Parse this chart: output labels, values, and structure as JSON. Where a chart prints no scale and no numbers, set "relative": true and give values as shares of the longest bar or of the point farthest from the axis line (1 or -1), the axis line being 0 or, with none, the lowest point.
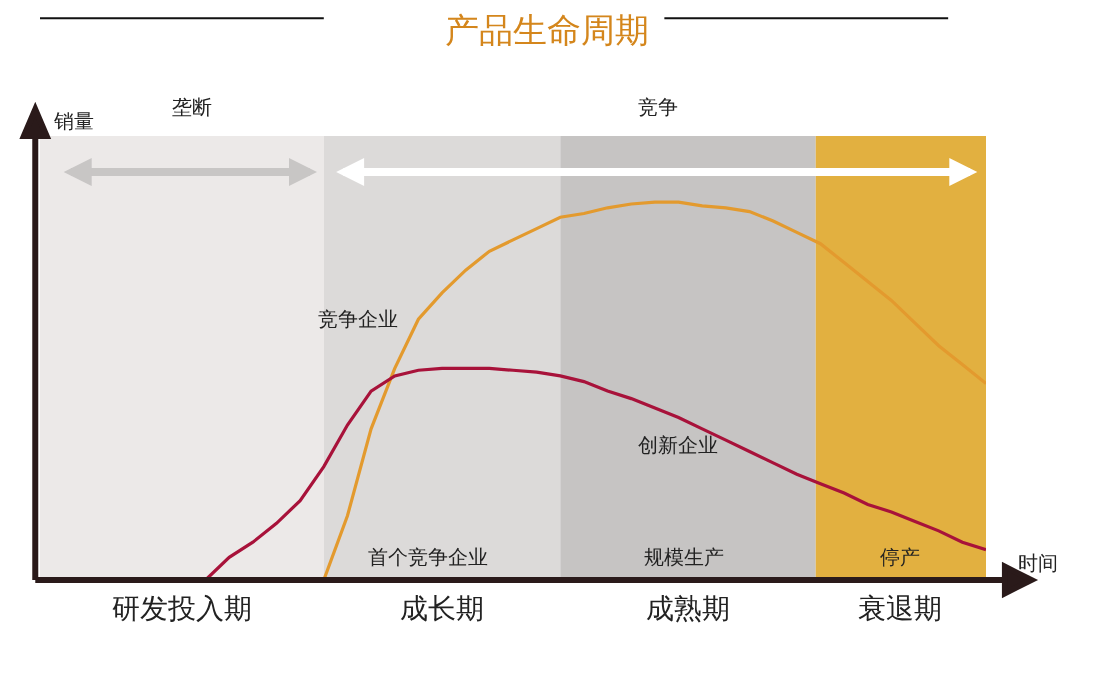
{
  "chart_data": {
    "type": "line",
    "title": "产品生命周期",
    "xlabel": "时间",
    "ylabel": "销量",
    "relative": true,
    "legend": false,
    "marker": "none",
    "line_style": "solid",
    "categories": [
      null,
      null,
      null,
      null,
      null,
      null,
      null,
      null,
      null,
      null,
      null,
      null,
      null,
      null,
      null,
      null,
      null,
      null,
      null,
      null,
      null,
      null,
      null,
      null,
      null,
      null,
      null,
      null,
      null,
      null,
      null,
      null,
      null,
      null,
      null,
      null,
      null,
      null,
      null,
      null,
      null
    ],
    "series": [
      {
        "name": "竞争企业",
        "color": "#e39a2e",
        "values": [
          null,
          null,
          null,
          null,
          null,
          null,
          null,
          null,
          null,
          null,
          null,
          null,
          0,
          0.17,
          0.4,
          0.56,
          0.69,
          0.76,
          0.82,
          0.87,
          0.9,
          0.93,
          0.96,
          0.97,
          0.985,
          0.995,
          1.0,
          1.0,
          0.99,
          0.985,
          0.975,
          0.95,
          0.92,
          0.89,
          0.84,
          0.79,
          0.74,
          0.68,
          0.62,
          0.57,
          0.52
        ]
      },
      {
        "name": "创新企业",
        "color": "#a8123a",
        "values": [
          null,
          null,
          null,
          null,
          null,
          null,
          null,
          0,
          0.06,
          0.1,
          0.15,
          0.21,
          0.3,
          0.41,
          0.5,
          0.54,
          0.555,
          0.56,
          0.56,
          0.56,
          0.555,
          0.55,
          0.54,
          0.525,
          0.5,
          0.48,
          0.455,
          0.43,
          0.4,
          0.37,
          0.34,
          0.31,
          0.28,
          0.255,
          0.23,
          0.2,
          0.18,
          0.155,
          0.13,
          0.1,
          0.08
        ]
      }
    ],
    "annotations": [
      "研发投入期",
      "成长期",
      "成熟期",
      "衰退期",
      "垄断",
      "竞争",
      "首个竞争企业",
      "规模生产",
      "停产"
    ]
  }
}
